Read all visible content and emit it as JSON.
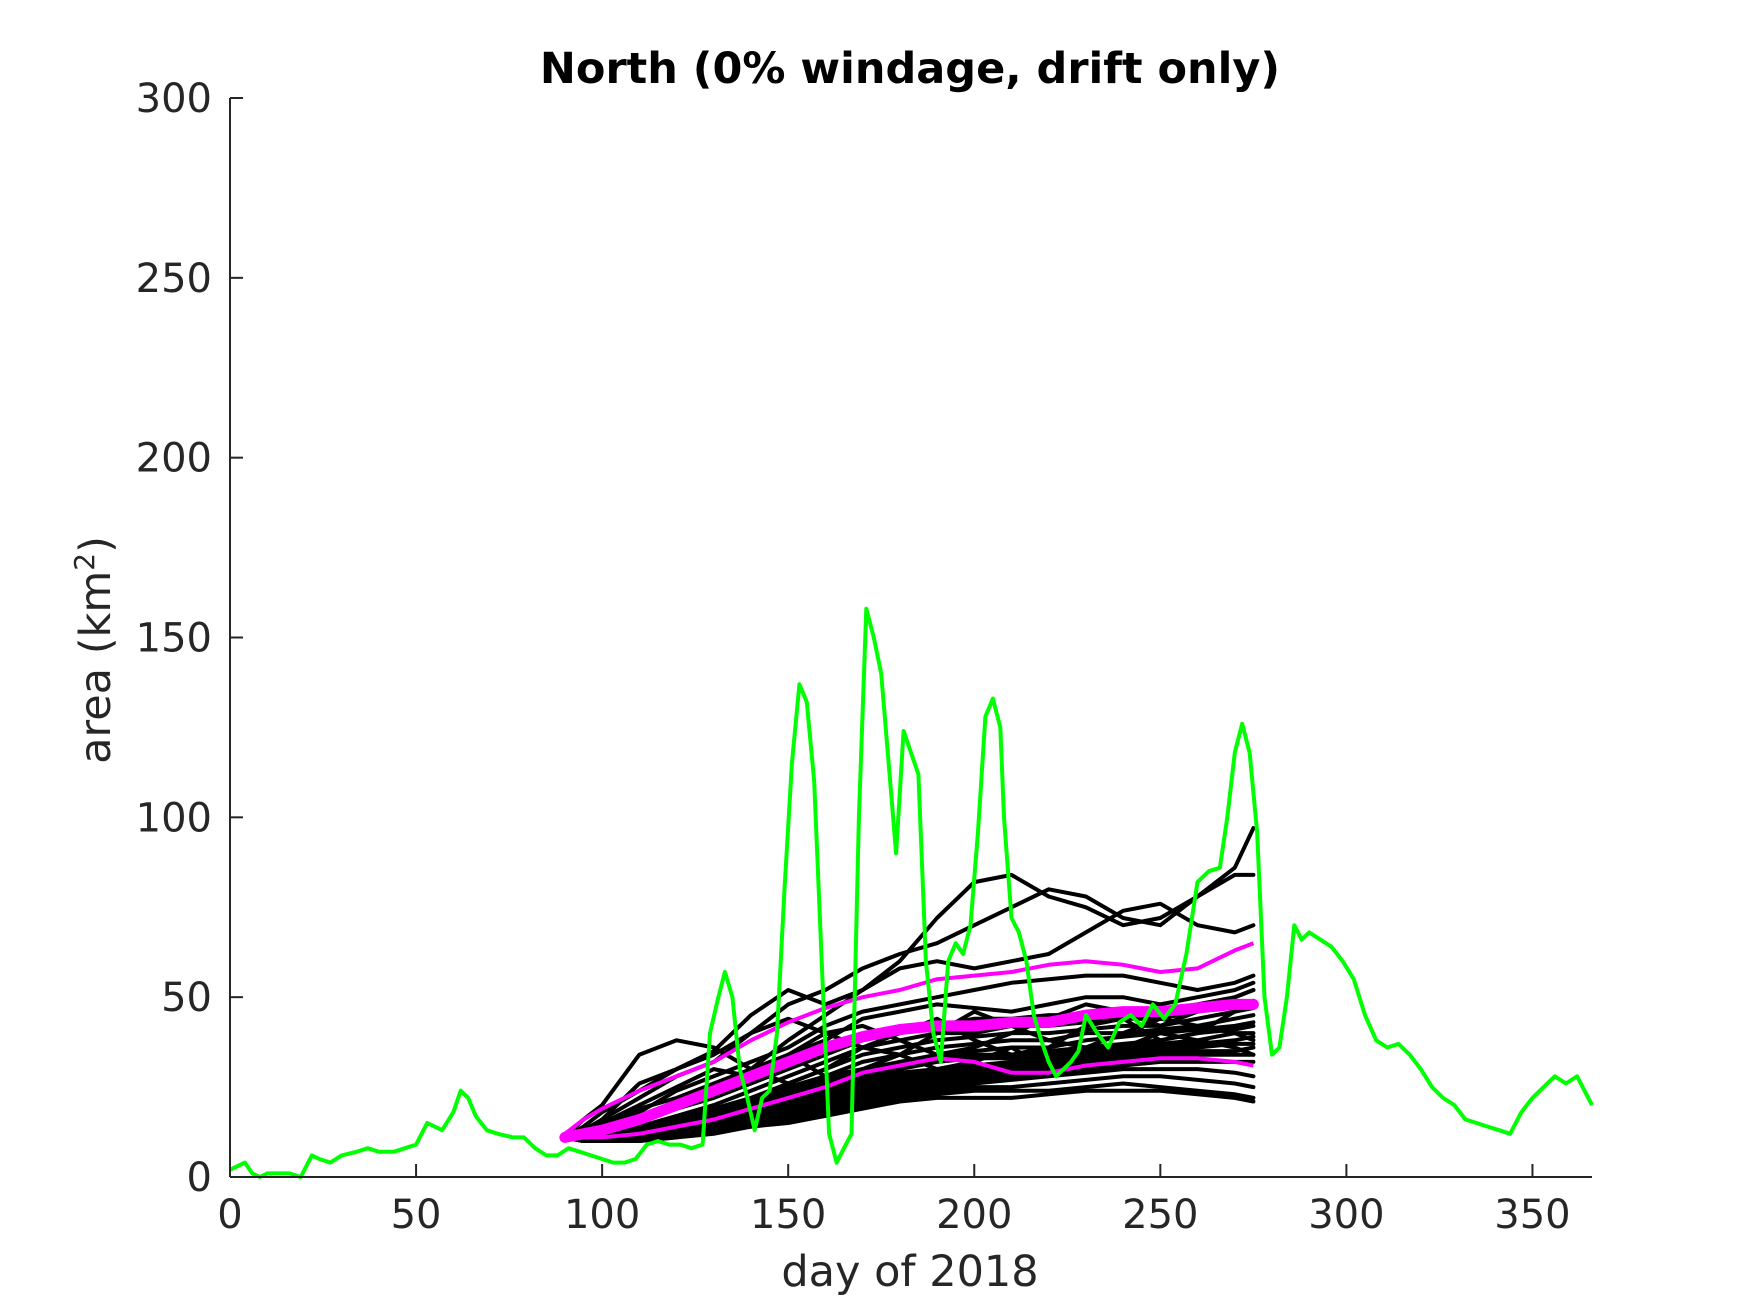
{
  "chart_data": {
    "type": "line",
    "title": "North (0% windage, drift only)",
    "xlabel": "day of 2018",
    "ylabel_main": "area (km",
    "ylabel_sup": "2",
    "ylabel_close": ")",
    "xlim": [
      0,
      366
    ],
    "ylim": [
      0,
      300
    ],
    "xticks": [
      0,
      50,
      100,
      150,
      200,
      250,
      300,
      350
    ],
    "yticks": [
      0,
      50,
      100,
      150,
      200,
      250,
      300
    ],
    "grid": false,
    "legend": "none",
    "colors": {
      "observed": "#00ff00",
      "ensemble": "#000000",
      "ensemble_mean": "#ff00ff",
      "ensemble_bounds": "#ff00ff",
      "axes": "#262626"
    },
    "observed": {
      "x": [
        0,
        4,
        6,
        8,
        10,
        13,
        16,
        19,
        22,
        24,
        27,
        30,
        34,
        37,
        40,
        44,
        47,
        50,
        53,
        55,
        57,
        60,
        62,
        64,
        66,
        69,
        72,
        76,
        79,
        82,
        85,
        88,
        91,
        94,
        97,
        100,
        103,
        106,
        109,
        112,
        115,
        118,
        121,
        124,
        127,
        129,
        131,
        133,
        135,
        137,
        139,
        141,
        143,
        145,
        147,
        149,
        151,
        153,
        155,
        157,
        159,
        161,
        163,
        165,
        167,
        169,
        171,
        173,
        175,
        177,
        179,
        181,
        183,
        185,
        187,
        189,
        191,
        193,
        195,
        197,
        199,
        201,
        203,
        205,
        207,
        208,
        210,
        212,
        214,
        216,
        218,
        220,
        222,
        224,
        226,
        228,
        230,
        233,
        236,
        239,
        242,
        245,
        248,
        251,
        254,
        257,
        260,
        263,
        266,
        268,
        270,
        272,
        274,
        276,
        278,
        280,
        282,
        284,
        286,
        288,
        290,
        293,
        296,
        299,
        302,
        305,
        308,
        311,
        314,
        317,
        320,
        323,
        326,
        329,
        332,
        335,
        338,
        341,
        344,
        347,
        350,
        353,
        356,
        359,
        362,
        366
      ],
      "y": [
        2,
        4,
        1,
        0,
        1,
        1,
        1,
        0,
        6,
        5,
        4,
        6,
        7,
        8,
        7,
        7,
        8,
        9,
        15,
        14,
        13,
        18,
        24,
        22,
        17,
        13,
        12,
        11,
        11,
        8,
        6,
        6,
        8,
        7,
        6,
        5,
        4,
        4,
        5,
        9,
        10,
        9,
        9,
        8,
        9,
        40,
        49,
        57,
        50,
        30,
        22,
        13,
        22,
        24,
        40,
        80,
        115,
        137,
        132,
        110,
        60,
        12,
        4,
        8,
        12,
        100,
        158,
        150,
        140,
        115,
        90,
        124,
        118,
        112,
        60,
        40,
        32,
        60,
        65,
        62,
        70,
        96,
        128,
        133,
        125,
        100,
        72,
        68,
        60,
        45,
        38,
        32,
        28,
        30,
        32,
        35,
        45,
        40,
        36,
        43,
        45,
        42,
        48,
        44,
        48,
        62,
        82,
        85,
        86,
        100,
        118,
        126,
        118,
        96,
        50,
        34,
        36,
        50,
        70,
        66,
        68,
        66,
        64,
        60,
        55,
        45,
        38,
        36,
        37,
        34,
        30,
        25,
        22,
        20,
        16,
        15,
        14,
        13,
        12,
        18,
        22,
        25,
        28,
        26,
        28,
        20
      ]
    },
    "ensemble_x": [
      90,
      95,
      100,
      110,
      120,
      130,
      140,
      150,
      160,
      170,
      180,
      190,
      200,
      210,
      220,
      230,
      240,
      250,
      260,
      270,
      275
    ],
    "ensemble_members": [
      [
        11,
        16,
        20,
        34,
        38,
        36,
        30,
        38,
        45,
        52,
        58,
        60,
        58,
        60,
        62,
        68,
        74,
        76,
        70,
        68,
        70
      ],
      [
        11,
        14,
        18,
        24,
        30,
        35,
        45,
        52,
        48,
        52,
        60,
        72,
        82,
        84,
        78,
        75,
        70,
        72,
        78,
        86,
        97
      ],
      [
        11,
        13,
        16,
        22,
        28,
        32,
        40,
        48,
        52,
        58,
        62,
        65,
        70,
        75,
        80,
        78,
        72,
        70,
        78,
        84,
        84
      ],
      [
        11,
        12,
        14,
        18,
        24,
        28,
        32,
        36,
        42,
        46,
        48,
        50,
        52,
        54,
        55,
        56,
        56,
        54,
        52,
        54,
        56
      ],
      [
        11,
        12,
        13,
        16,
        20,
        24,
        28,
        34,
        38,
        44,
        46,
        48,
        47,
        46,
        48,
        50,
        50,
        48,
        50,
        52,
        54
      ],
      [
        11,
        12,
        13,
        15,
        19,
        22,
        26,
        30,
        34,
        38,
        40,
        42,
        44,
        44,
        45,
        45,
        44,
        46,
        48,
        50,
        52
      ],
      [
        11,
        12,
        12,
        14,
        17,
        20,
        24,
        28,
        32,
        36,
        38,
        40,
        40,
        42,
        42,
        43,
        44,
        44,
        46,
        48,
        49
      ],
      [
        11,
        11,
        12,
        14,
        16,
        19,
        22,
        26,
        30,
        34,
        36,
        38,
        39,
        40,
        40,
        41,
        42,
        42,
        44,
        46,
        47
      ],
      [
        11,
        11,
        12,
        13,
        16,
        18,
        21,
        25,
        28,
        32,
        34,
        36,
        37,
        38,
        38,
        40,
        40,
        41,
        42,
        44,
        45
      ],
      [
        11,
        11,
        12,
        13,
        15,
        18,
        20,
        24,
        27,
        30,
        32,
        34,
        35,
        36,
        36,
        38,
        39,
        40,
        41,
        42,
        43
      ],
      [
        11,
        11,
        11,
        13,
        15,
        17,
        20,
        23,
        26,
        29,
        31,
        33,
        34,
        34,
        35,
        36,
        37,
        38,
        40,
        41,
        42
      ],
      [
        11,
        11,
        11,
        12,
        14,
        17,
        19,
        22,
        25,
        28,
        30,
        32,
        33,
        33,
        34,
        35,
        36,
        37,
        38,
        40,
        40
      ],
      [
        11,
        10,
        11,
        12,
        14,
        16,
        18,
        21,
        24,
        27,
        29,
        30,
        31,
        32,
        33,
        34,
        35,
        36,
        37,
        38,
        39
      ],
      [
        11,
        10,
        11,
        12,
        13,
        16,
        18,
        20,
        23,
        26,
        28,
        29,
        30,
        31,
        32,
        33,
        34,
        35,
        36,
        37,
        37
      ],
      [
        11,
        10,
        11,
        12,
        13,
        15,
        17,
        19,
        22,
        25,
        27,
        28,
        29,
        30,
        31,
        32,
        33,
        34,
        35,
        35,
        36
      ],
      [
        11,
        10,
        10,
        11,
        13,
        15,
        17,
        19,
        21,
        24,
        26,
        27,
        28,
        29,
        30,
        31,
        32,
        33,
        34,
        34,
        34
      ],
      [
        11,
        10,
        10,
        11,
        12,
        14,
        16,
        18,
        20,
        23,
        25,
        26,
        27,
        28,
        29,
        30,
        31,
        32,
        32,
        32,
        32
      ],
      [
        11,
        10,
        10,
        11,
        12,
        14,
        16,
        17,
        19,
        22,
        24,
        25,
        26,
        27,
        28,
        29,
        30,
        30,
        30,
        29,
        28
      ],
      [
        11,
        10,
        10,
        11,
        12,
        13,
        15,
        16,
        18,
        21,
        23,
        24,
        25,
        25,
        26,
        27,
        28,
        28,
        27,
        26,
        25
      ],
      [
        11,
        10,
        10,
        10,
        11,
        13,
        14,
        16,
        17,
        20,
        22,
        23,
        24,
        24,
        24,
        25,
        26,
        25,
        24,
        23,
        22
      ],
      [
        11,
        10,
        10,
        10,
        11,
        12,
        14,
        15,
        17,
        19,
        21,
        22,
        22,
        22,
        23,
        24,
        24,
        24,
        23,
        22,
        21
      ],
      [
        11,
        12,
        16,
        26,
        30,
        34,
        40,
        44,
        40,
        36,
        34,
        40,
        46,
        42,
        38,
        36,
        40,
        44,
        42,
        40,
        38
      ],
      [
        11,
        13,
        15,
        20,
        25,
        30,
        28,
        34,
        40,
        42,
        38,
        34,
        36,
        40,
        44,
        48,
        46,
        42,
        46,
        50,
        52
      ],
      [
        11,
        12,
        14,
        19,
        22,
        26,
        30,
        26,
        30,
        36,
        40,
        44,
        38,
        34,
        36,
        42,
        44,
        38,
        40,
        46,
        48
      ],
      [
        11,
        12,
        13,
        17,
        21,
        25,
        30,
        34,
        28,
        30,
        34,
        30,
        32,
        36,
        30,
        32,
        36,
        40,
        38,
        36,
        34
      ]
    ],
    "ensemble_mean": [
      11,
      12,
      13,
      16,
      20,
      24,
      28,
      32,
      36,
      39,
      41,
      42,
      42,
      43,
      43,
      45,
      46,
      46,
      47,
      48,
      48
    ],
    "ensemble_upper": [
      12,
      16,
      19,
      24,
      28,
      32,
      38,
      43,
      47,
      50,
      52,
      55,
      56,
      57,
      59,
      60,
      59,
      57,
      58,
      63,
      65
    ],
    "ensemble_lower": [
      11,
      11,
      11,
      12,
      14,
      16,
      19,
      22,
      25,
      29,
      31,
      33,
      32,
      29,
      29,
      31,
      32,
      33,
      33,
      32,
      31
    ]
  }
}
